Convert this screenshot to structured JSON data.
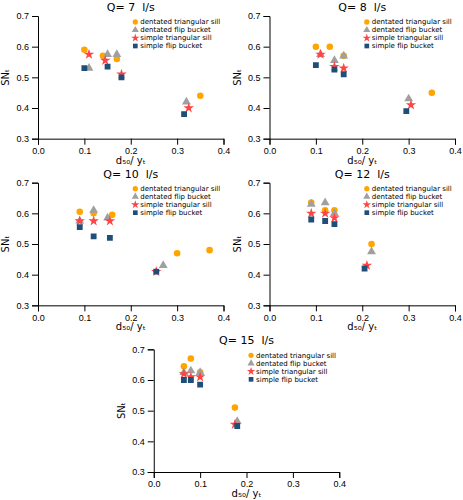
{
  "chart_data": [
    {
      "type": "scatter",
      "title": "Q= 7  l/s",
      "xlabel": "d₅₀/ yₜ",
      "ylabel": "SNₜ",
      "xlim": [
        0,
        0.4
      ],
      "ylim": [
        0.3,
        0.7
      ],
      "xticks": [
        {
          "value": 0,
          "label": "0.0"
        },
        0.1,
        0.2,
        0.3,
        0.4
      ],
      "yticks": [
        0.3,
        0.4,
        0.5,
        0.6,
        0.7
      ],
      "grid": false,
      "legend": "upper right",
      "series": [
        {
          "name": "dentated triangular sill",
          "color": "#FFA500",
          "marker": "circle",
          "x": [
            0.1,
            0.14,
            0.17,
            0.35
          ],
          "values": [
            0.59,
            0.57,
            0.56,
            0.44
          ]
        },
        {
          "name": "dentated flip bucket",
          "color": "#A0A0A0",
          "marker": "triangle",
          "x": [
            0.11,
            0.15,
            0.17,
            0.32
          ],
          "values": [
            0.53,
            0.575,
            0.575,
            0.42
          ]
        },
        {
          "name": "simple triangular sill",
          "color": "#FF4444",
          "marker": "star",
          "x": [
            0.11,
            0.145,
            0.18,
            0.325
          ],
          "values": [
            0.575,
            0.555,
            0.51,
            0.4
          ]
        },
        {
          "name": "simple flip bucket",
          "color": "#1F4E79",
          "marker": "square",
          "x": [
            0.1,
            0.15,
            0.18,
            0.315
          ],
          "values": [
            0.53,
            0.535,
            0.5,
            0.38
          ]
        }
      ]
    },
    {
      "type": "scatter",
      "title": "Q= 8  l/s",
      "xlabel": "d₅₀/ yₜ",
      "ylabel": "SNₜ",
      "xlim": [
        0,
        0.4
      ],
      "ylim": [
        0.3,
        0.7
      ],
      "xticks": [
        {
          "value": 0,
          "label": "0.0"
        },
        0.1,
        0.2,
        0.3,
        0.4
      ],
      "yticks": [
        0.3,
        0.4,
        0.5,
        0.6,
        0.7
      ],
      "grid": false,
      "legend": "upper right",
      "series": [
        {
          "name": "dentated triangular sill",
          "color": "#FFA500",
          "marker": "circle",
          "x": [
            0.1,
            0.13,
            0.16,
            0.35
          ],
          "values": [
            0.6,
            0.6,
            0.57,
            0.45
          ]
        },
        {
          "name": "dentated flip bucket",
          "color": "#A0A0A0",
          "marker": "triangle",
          "x": [
            0.11,
            0.14,
            0.16,
            0.3
          ],
          "values": [
            0.575,
            0.555,
            0.57,
            0.43
          ]
        },
        {
          "name": "simple triangular sill",
          "color": "#FF4444",
          "marker": "star",
          "x": [
            0.11,
            0.14,
            0.16,
            0.305
          ],
          "values": [
            0.575,
            0.535,
            0.53,
            0.41
          ]
        },
        {
          "name": "simple flip bucket",
          "color": "#1F4E79",
          "marker": "square",
          "x": [
            0.1,
            0.14,
            0.16,
            0.295
          ],
          "values": [
            0.54,
            0.525,
            0.51,
            0.39
          ]
        }
      ]
    },
    {
      "type": "scatter",
      "title": "Q= 10  l/s",
      "xlabel": "d₅₀/ yₜ",
      "ylabel": "SNₜ",
      "xlim": [
        0,
        0.4
      ],
      "ylim": [
        0.3,
        0.7
      ],
      "xticks": [
        {
          "value": 0,
          "label": "0.0"
        },
        0.1,
        0.2,
        0.3,
        0.4
      ],
      "yticks": [
        0.3,
        0.4,
        0.5,
        0.6,
        0.7
      ],
      "grid": false,
      "legend": "upper right",
      "series": [
        {
          "name": "dentated triangular sill",
          "color": "#FFA500",
          "marker": "circle",
          "x": [
            0.09,
            0.12,
            0.16,
            0.3,
            0.37
          ],
          "values": [
            0.605,
            0.6,
            0.595,
            0.47,
            0.48
          ]
        },
        {
          "name": "dentated flip bucket",
          "color": "#A0A0A0",
          "marker": "triangle",
          "x": [
            0.09,
            0.12,
            0.15,
            0.27
          ],
          "values": [
            0.575,
            0.61,
            0.585,
            0.43
          ]
        },
        {
          "name": "simple triangular sill",
          "color": "#FF4444",
          "marker": "star",
          "x": [
            0.09,
            0.12,
            0.155,
            0.255
          ],
          "values": [
            0.575,
            0.575,
            0.575,
            0.41
          ]
        },
        {
          "name": "simple flip bucket",
          "color": "#1F4E79",
          "marker": "square",
          "x": [
            0.09,
            0.12,
            0.155,
            0.255
          ],
          "values": [
            0.555,
            0.525,
            0.52,
            0.41
          ]
        }
      ]
    },
    {
      "type": "scatter",
      "title": "Q= 12  l/s",
      "xlabel": "d₅₀/ yₜ",
      "ylabel": "SNₜ",
      "xlim": [
        0,
        0.4
      ],
      "ylim": [
        0.3,
        0.7
      ],
      "xticks": [
        {
          "value": 0,
          "label": "0.0"
        },
        0.1,
        0.2,
        0.3,
        0.4
      ],
      "yticks": [
        0.3,
        0.4,
        0.5,
        0.6,
        0.7
      ],
      "grid": false,
      "legend": "upper right",
      "series": [
        {
          "name": "dentated triangular sill",
          "color": "#FFA500",
          "marker": "circle",
          "x": [
            0.09,
            0.12,
            0.14,
            0.22
          ],
          "values": [
            0.635,
            0.61,
            0.61,
            0.5
          ]
        },
        {
          "name": "dentated flip bucket",
          "color": "#A0A0A0",
          "marker": "triangle",
          "x": [
            0.09,
            0.12,
            0.14,
            0.22
          ],
          "values": [
            0.63,
            0.635,
            0.6,
            0.475
          ]
        },
        {
          "name": "simple triangular sill",
          "color": "#FF4444",
          "marker": "star",
          "x": [
            0.09,
            0.12,
            0.14,
            0.21
          ],
          "values": [
            0.6,
            0.6,
            0.585,
            0.43
          ]
        },
        {
          "name": "simple flip bucket",
          "color": "#1F4E79",
          "marker": "square",
          "x": [
            0.09,
            0.12,
            0.14,
            0.205
          ],
          "values": [
            0.58,
            0.575,
            0.565,
            0.42
          ]
        }
      ]
    },
    {
      "type": "scatter",
      "title": "Q= 15  l/s",
      "xlabel": "d₅₀/ yₜ",
      "ylabel": "SNₜ",
      "xlim": [
        0,
        0.4
      ],
      "ylim": [
        0.3,
        0.7
      ],
      "xticks": [
        {
          "value": 0,
          "label": "0.0"
        },
        0.1,
        0.2,
        0.3,
        0.4
      ],
      "yticks": [
        0.3,
        0.4,
        0.5,
        0.6,
        0.7
      ],
      "grid": false,
      "legend": "upper right",
      "series": [
        {
          "name": "dentated triangular sill",
          "color": "#FFA500",
          "marker": "circle",
          "x": [
            0.065,
            0.08,
            0.1,
            0.175
          ],
          "values": [
            0.645,
            0.67,
            0.625,
            0.51
          ]
        },
        {
          "name": "dentated flip bucket",
          "color": "#A0A0A0",
          "marker": "triangle",
          "x": [
            0.065,
            0.08,
            0.1,
            0.18
          ],
          "values": [
            0.625,
            0.63,
            0.625,
            0.465
          ]
        },
        {
          "name": "simple triangular sill",
          "color": "#FF4444",
          "marker": "star",
          "x": [
            0.065,
            0.08,
            0.1,
            0.175
          ],
          "values": [
            0.62,
            0.61,
            0.61,
            0.455
          ]
        },
        {
          "name": "simple flip bucket",
          "color": "#1F4E79",
          "marker": "square",
          "x": [
            0.065,
            0.08,
            0.1,
            0.18
          ],
          "values": [
            0.6,
            0.6,
            0.585,
            0.45
          ]
        }
      ]
    }
  ]
}
